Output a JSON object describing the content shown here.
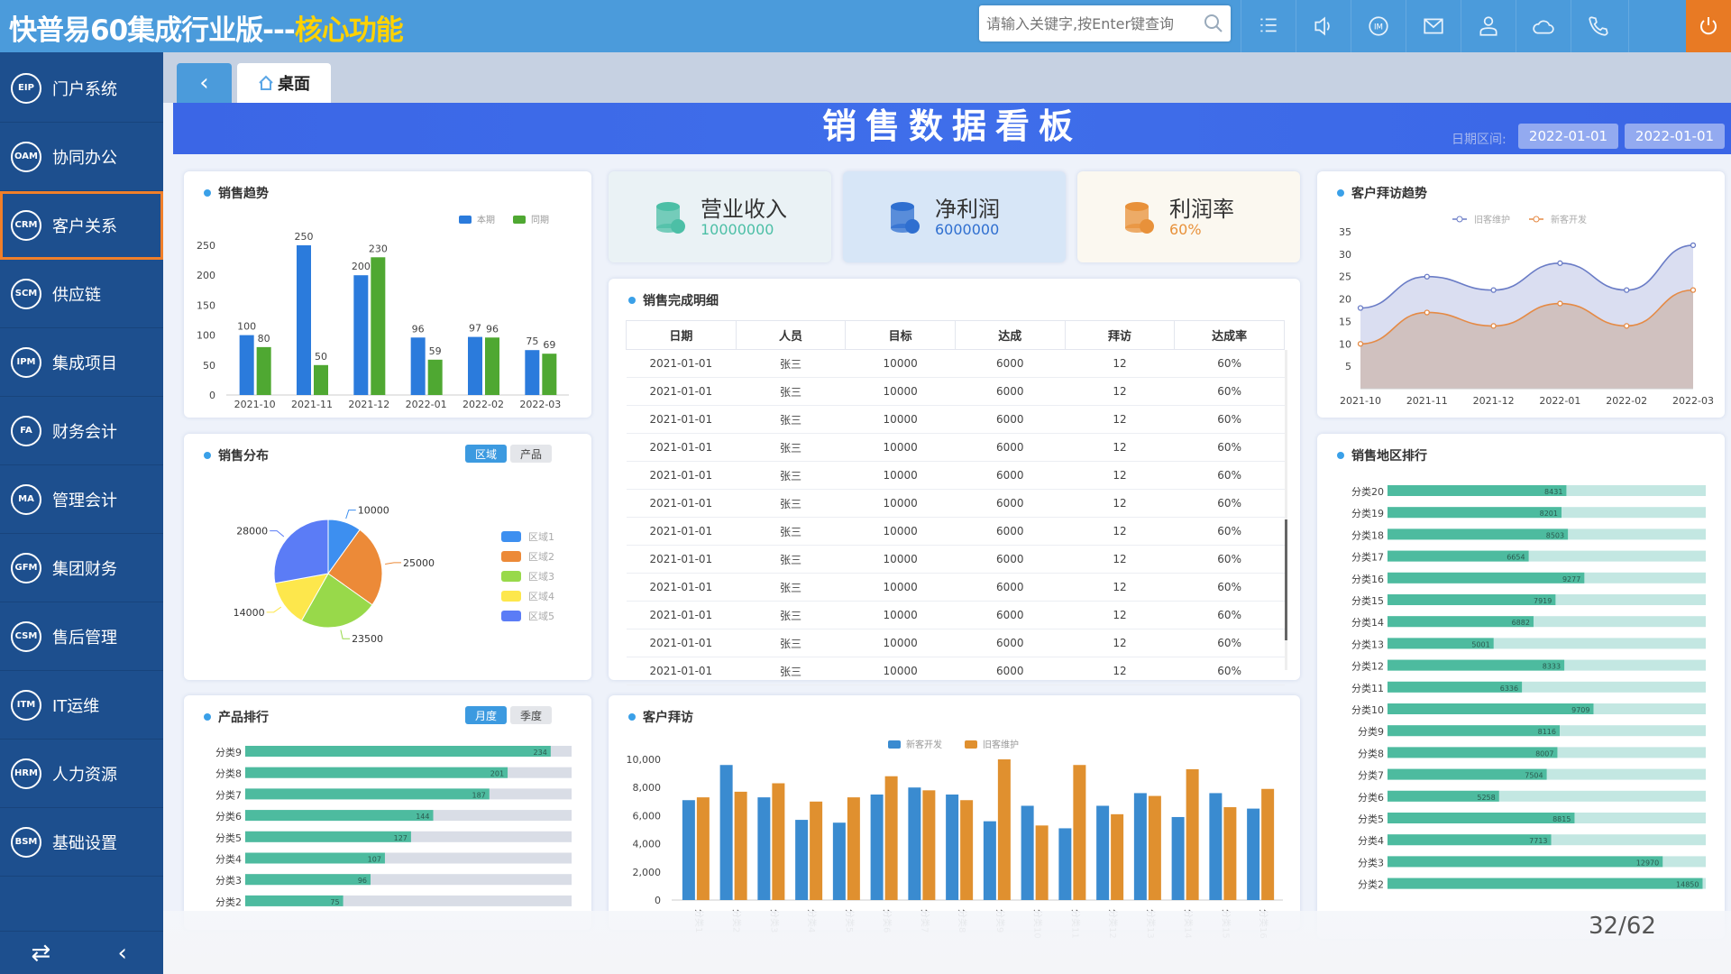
{
  "topbar": {
    "title_main": "快普易60集成行业版---",
    "title_highlight": "核心功能",
    "search_placeholder": "请输入关键字,按Enter键查询",
    "icons": [
      "list-icon",
      "volume-icon",
      "im-icon",
      "mail-icon",
      "user-icon",
      "cloud-icon",
      "phone-icon"
    ],
    "power_color": "#e87a24"
  },
  "sidebar": {
    "items": [
      {
        "code": "EIP",
        "label": "门户系统"
      },
      {
        "code": "OAM",
        "label": "协同办公"
      },
      {
        "code": "CRM",
        "label": "客户关系",
        "active": true
      },
      {
        "code": "SCM",
        "label": "供应链"
      },
      {
        "code": "IPM",
        "label": "集成项目"
      },
      {
        "code": "FA",
        "label": "财务会计"
      },
      {
        "code": "MA",
        "label": "管理会计"
      },
      {
        "code": "GFM",
        "label": "集团财务"
      },
      {
        "code": "CSM",
        "label": "售后管理"
      },
      {
        "code": "ITM",
        "label": "IT运维"
      },
      {
        "code": "HRM",
        "label": "人力资源"
      },
      {
        "code": "BSM",
        "label": "基础设置"
      }
    ]
  },
  "tabs": {
    "desk": "桌面"
  },
  "banner": {
    "title": "销售数据看板",
    "date_label": "日期区间:",
    "date_from": "2022-01-01",
    "date_to": "2022-01-01"
  },
  "kpis": [
    {
      "title": "营业收入",
      "value": "10000000",
      "color": "#4cbfa6",
      "bg": "#eaf2f5",
      "icon": "coins-plus-icon"
    },
    {
      "title": "净利润",
      "value": "6000000",
      "color": "#2f6fd0",
      "bg": "#d7e6f7",
      "icon": "coins-yen-icon"
    },
    {
      "title": "利润率",
      "value": "60%",
      "color": "#e8913a",
      "bg": "#fbf8f0",
      "icon": "coins-percent-icon"
    }
  ],
  "table": {
    "title": "销售完成明细",
    "columns": [
      "日期",
      "人员",
      "目标",
      "达成",
      "拜访",
      "达成率"
    ],
    "rows": [
      [
        "2021-01-01",
        "张三",
        "10000",
        "6000",
        "12",
        "60%"
      ],
      [
        "2021-01-01",
        "张三",
        "10000",
        "6000",
        "12",
        "60%"
      ],
      [
        "2021-01-01",
        "张三",
        "10000",
        "6000",
        "12",
        "60%"
      ],
      [
        "2021-01-01",
        "张三",
        "10000",
        "6000",
        "12",
        "60%"
      ],
      [
        "2021-01-01",
        "张三",
        "10000",
        "6000",
        "12",
        "60%"
      ],
      [
        "2021-01-01",
        "张三",
        "10000",
        "6000",
        "12",
        "60%"
      ],
      [
        "2021-01-01",
        "张三",
        "10000",
        "6000",
        "12",
        "60%"
      ],
      [
        "2021-01-01",
        "张三",
        "10000",
        "6000",
        "12",
        "60%"
      ],
      [
        "2021-01-01",
        "张三",
        "10000",
        "6000",
        "12",
        "60%"
      ],
      [
        "2021-01-01",
        "张三",
        "10000",
        "6000",
        "12",
        "60%"
      ],
      [
        "2021-01-01",
        "张三",
        "10000",
        "6000",
        "12",
        "60%"
      ],
      [
        "2021-01-01",
        "张三",
        "10000",
        "6000",
        "12",
        "60%"
      ]
    ]
  },
  "page_counter": "32/62",
  "chart_data": [
    {
      "id": "sales_trend",
      "type": "bar",
      "title": "销售趋势",
      "categories": [
        "2021-10",
        "2021-11",
        "2021-12",
        "2022-01",
        "2022-02",
        "2022-03"
      ],
      "series": [
        {
          "name": "本期",
          "values": [
            100,
            250,
            200,
            96,
            97,
            75
          ],
          "color": "#2b7bdc"
        },
        {
          "name": "同期",
          "values": [
            80,
            50,
            230,
            59,
            96,
            69
          ],
          "color": "#4fa832"
        }
      ],
      "ylim": [
        0,
        250
      ],
      "yticks": [
        0,
        50,
        100,
        150,
        200,
        250
      ],
      "legend": "top-right",
      "data_labels": true
    },
    {
      "id": "sales_distribution",
      "type": "pie",
      "title": "销售分布",
      "toggle": [
        "区域",
        "产品"
      ],
      "toggle_active": 0,
      "categories": [
        "区域1",
        "区域2",
        "区域3",
        "区域4",
        "区域5"
      ],
      "values": [
        10000,
        25000,
        23500,
        14000,
        28000
      ],
      "colors": [
        "#3d8ff0",
        "#ec8a38",
        "#98d94a",
        "#fde74c",
        "#5b7cf6"
      ],
      "legend": "right"
    },
    {
      "id": "product_ranking",
      "type": "bar",
      "orientation": "horizontal",
      "title": "产品排行",
      "toggle": [
        "月度",
        "季度"
      ],
      "toggle_active": 0,
      "categories": [
        "分类9",
        "分类8",
        "分类7",
        "分类6",
        "分类5",
        "分类4",
        "分类3",
        "分类2"
      ],
      "values": [
        234,
        201,
        187,
        144,
        127,
        107,
        96,
        75
      ],
      "xlim": [
        0,
        250
      ],
      "color": "#4dbb9f",
      "track_color": "#d9dde6"
    },
    {
      "id": "customer_visits",
      "type": "bar",
      "title": "客户拜访",
      "categories": [
        "分类1",
        "分类2",
        "分类3",
        "分类4",
        "分类5",
        "分类6",
        "分类7",
        "分类8",
        "分类9",
        "分类10",
        "分类11",
        "分类12",
        "分类13",
        "分类14",
        "分类15",
        "分类16"
      ],
      "series": [
        {
          "name": "新客开发",
          "values": [
            7100,
            9600,
            7300,
            5700,
            5500,
            7500,
            8000,
            7500,
            5600,
            6700,
            5100,
            6700,
            7600,
            5900,
            7600,
            6500
          ],
          "color": "#3a8bd0"
        },
        {
          "name": "旧客维护",
          "values": [
            7300,
            7700,
            8300,
            7000,
            7300,
            8800,
            7800,
            7100,
            10000,
            5300,
            9600,
            6100,
            7400,
            9300,
            6600,
            7900
          ],
          "color": "#e0902f"
        }
      ],
      "ylim": [
        0,
        10000
      ],
      "yticks": [
        "0",
        "2,000",
        "4,000",
        "6,000",
        "8,000",
        "10,000"
      ],
      "legend": "top-center"
    },
    {
      "id": "visit_trend",
      "type": "area",
      "title": "客户拜访趋势",
      "categories": [
        "2021-10",
        "2021-11",
        "2021-12",
        "2022-01",
        "2022-02",
        "2022-03"
      ],
      "series": [
        {
          "name": "旧客维护",
          "values": [
            18,
            25,
            22,
            28,
            22,
            32
          ],
          "color": "#6a7cc6"
        },
        {
          "name": "新客开发",
          "values": [
            10,
            17,
            14,
            19,
            14,
            22
          ],
          "color": "#e58a45"
        }
      ],
      "ylim": [
        0,
        35
      ],
      "yticks": [
        5,
        10,
        15,
        20,
        25,
        30,
        35
      ],
      "legend": "top-center",
      "smooth": true
    },
    {
      "id": "region_ranking",
      "type": "bar",
      "orientation": "horizontal",
      "title": "销售地区排行",
      "categories": [
        "分类20",
        "分类19",
        "分类18",
        "分类17",
        "分类16",
        "分类15",
        "分类14",
        "分类13",
        "分类12",
        "分类11",
        "分类10",
        "分类9",
        "分类8",
        "分类7",
        "分类6",
        "分类5",
        "分类4",
        "分类3",
        "分类2"
      ],
      "values": [
        8431,
        8201,
        8503,
        6654,
        9277,
        7919,
        6882,
        5001,
        8333,
        6336,
        9709,
        8116,
        8007,
        7504,
        5258,
        8815,
        7713,
        12970,
        14850
      ],
      "xlim": [
        0,
        15000
      ],
      "color": "#4dbb9f",
      "track_color": "#c3e7e2"
    }
  ]
}
